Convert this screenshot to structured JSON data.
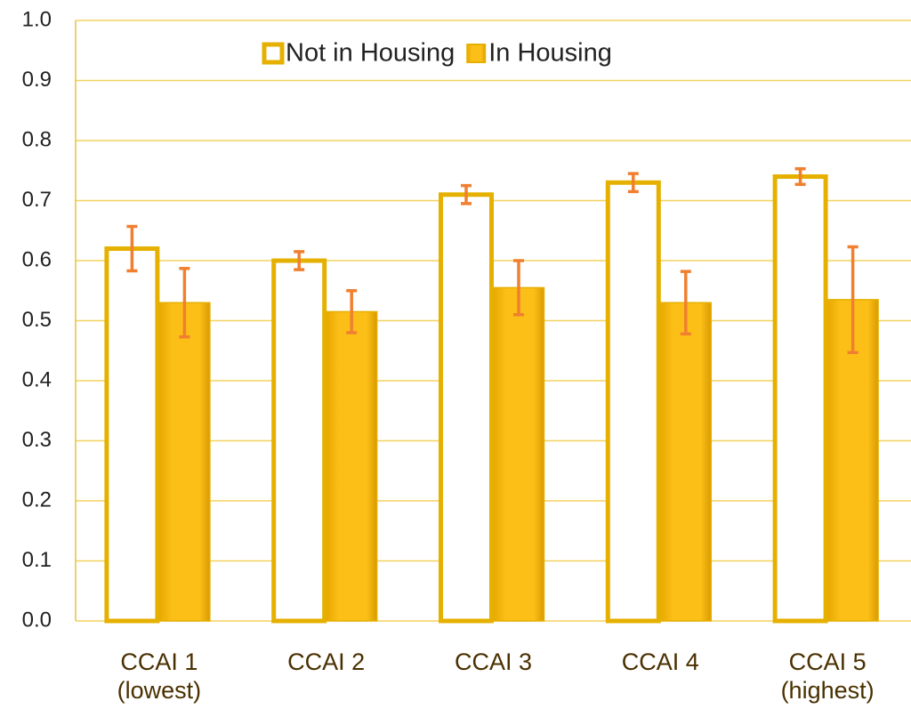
{
  "chart_data": {
    "type": "bar",
    "categories": [
      "CCAI 1\n(lowest)",
      "CCAI 2",
      "CCAI 3",
      "CCAI 4",
      "CCAI 5\n(highest)"
    ],
    "series": [
      {
        "name": "Not in Housing",
        "color": "#ffffff",
        "values": [
          0.62,
          0.6,
          0.71,
          0.73,
          0.74
        ],
        "errors": [
          0.037,
          0.015,
          0.015,
          0.015,
          0.013
        ]
      },
      {
        "name": "In Housing",
        "color": "#fbbf17",
        "values": [
          0.53,
          0.515,
          0.555,
          0.53,
          0.535
        ],
        "errors": [
          0.057,
          0.035,
          0.045,
          0.052,
          0.088
        ]
      }
    ],
    "ylim": [
      0,
      1
    ],
    "yticks": [
      {
        "value": 0,
        "label": "0.0"
      },
      0.1,
      0.2,
      0.3,
      0.4,
      0.5,
      0.6,
      0.7,
      0.8,
      0.9,
      {
        "value": 1,
        "label": "1.0"
      }
    ],
    "grid": true,
    "legend": "top",
    "error_color": "#f08030"
  }
}
